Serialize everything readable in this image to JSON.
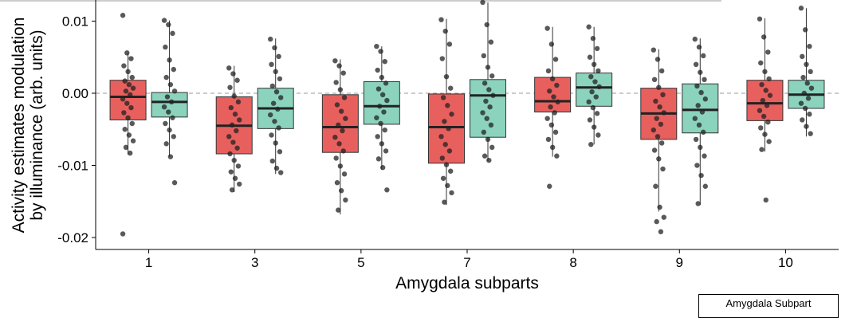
{
  "chart_data": {
    "type": "box",
    "xlabel": "Amygdala subparts",
    "ylabel_line1": "Activity estimates modulation",
    "ylabel_line2": "by illuminance (arb. units)",
    "yticks": [
      "0.01",
      "0.00",
      "-0.01",
      "-0.02"
    ],
    "ytick_values": [
      0.01,
      0.0,
      -0.01,
      -0.02
    ],
    "ylim": [
      -0.0205,
      0.0125
    ],
    "reference_line": 0.0,
    "categories": [
      "1",
      "3",
      "5",
      "7",
      "8",
      "9",
      "10"
    ],
    "legend_title": "Amygdala Subpart",
    "colors": {
      "red": "#e8605e",
      "teal": "#8bd3bc",
      "point": "#222222"
    },
    "series": [
      {
        "color_key": "red",
        "boxes": [
          {
            "q1": -0.0037,
            "median": -0.0005,
            "q3": 0.0018,
            "wlow": -0.0085,
            "whigh": 0.0055,
            "points": [
              0.0108,
              0.0056,
              0.0048,
              0.0038,
              0.003,
              0.0022,
              0.0017,
              0.0012,
              0.0007,
              0.0003,
              -0.0002,
              -0.0008,
              -0.0014,
              -0.002,
              -0.0027,
              -0.0034,
              -0.0042,
              -0.005,
              -0.0058,
              -0.0066,
              -0.0075,
              -0.0083,
              -0.0195
            ]
          },
          {
            "q1": -0.0084,
            "median": -0.0045,
            "q3": -0.0005,
            "wlow": -0.0137,
            "whigh": 0.0038,
            "points": [
              0.0035,
              0.0027,
              0.0018,
              0.0008,
              -0.0004,
              -0.0012,
              -0.002,
              -0.0029,
              -0.0037,
              -0.0044,
              -0.0052,
              -0.006,
              -0.0068,
              -0.0076,
              -0.0084,
              -0.0093,
              -0.0101,
              -0.0109,
              -0.0118,
              -0.0126,
              -0.0134
            ]
          },
          {
            "q1": -0.0082,
            "median": -0.0047,
            "q3": -0.0002,
            "wlow": -0.0168,
            "whigh": 0.0047,
            "points": [
              0.0045,
              0.0038,
              0.0028,
              0.0015,
              0.0005,
              -0.0006,
              -0.0016,
              -0.0025,
              -0.0035,
              -0.0044,
              -0.0052,
              -0.0061,
              -0.007,
              -0.008,
              -0.009,
              -0.0101,
              -0.0112,
              -0.0124,
              -0.0135,
              -0.0148,
              -0.0162
            ]
          },
          {
            "q1": -0.0097,
            "median": -0.0047,
            "q3": -0.0001,
            "wlow": -0.0155,
            "whigh": 0.0103,
            "points": [
              0.0102,
              0.0086,
              0.0068,
              0.0048,
              0.0023,
              0.0007,
              -0.0006,
              -0.0017,
              -0.0029,
              -0.0039,
              -0.0049,
              -0.006,
              -0.0071,
              -0.008,
              -0.009,
              -0.0099,
              -0.0108,
              -0.0118,
              -0.0128,
              -0.0138,
              -0.0151
            ]
          },
          {
            "q1": -0.0026,
            "median": -0.0011,
            "q3": 0.0022,
            "wlow": -0.0088,
            "whigh": 0.0092,
            "points": [
              0.009,
              0.0068,
              0.0047,
              0.0031,
              0.002,
              0.0011,
              0.0003,
              -0.0005,
              -0.0012,
              -0.0019,
              -0.0027,
              -0.0035,
              -0.0044,
              -0.0054,
              -0.0064,
              -0.0075,
              -0.0087,
              -0.0129
            ]
          },
          {
            "q1": -0.0064,
            "median": -0.0028,
            "q3": 0.0007,
            "wlow": -0.0164,
            "whigh": 0.0061,
            "points": [
              0.006,
              0.0047,
              0.0031,
              0.0019,
              0.0008,
              -0.0002,
              -0.0011,
              -0.0019,
              -0.0027,
              -0.0035,
              -0.0043,
              -0.0051,
              -0.006,
              -0.0069,
              -0.0079,
              -0.0091,
              -0.0105,
              -0.0129,
              -0.0158,
              -0.0172,
              -0.0178,
              -0.0192
            ]
          },
          {
            "q1": -0.0038,
            "median": -0.0014,
            "q3": 0.0018,
            "wlow": -0.0081,
            "whigh": 0.0104,
            "points": [
              0.0103,
              0.0078,
              0.0057,
              0.0042,
              0.003,
              0.002,
              0.0012,
              0.0004,
              -0.0003,
              -0.001,
              -0.0017,
              -0.0024,
              -0.0032,
              -0.004,
              -0.0048,
              -0.0057,
              -0.0067,
              -0.0078,
              -0.0148
            ]
          }
        ]
      },
      {
        "color_key": "teal",
        "boxes": [
          {
            "q1": -0.0033,
            "median": -0.0012,
            "q3": 0.0001,
            "wlow": -0.0088,
            "whigh": 0.0101,
            "points": [
              0.0101,
              0.0095,
              0.0083,
              0.0064,
              0.0046,
              0.0033,
              0.0022,
              0.0012,
              0.0003,
              -0.0005,
              -0.0012,
              -0.0019,
              -0.0026,
              -0.0034,
              -0.0042,
              -0.0051,
              -0.006,
              -0.007,
              -0.0088,
              -0.0124
            ]
          },
          {
            "q1": -0.0049,
            "median": -0.0021,
            "q3": 0.0007,
            "wlow": -0.0112,
            "whigh": 0.0076,
            "points": [
              0.0075,
              0.0063,
              0.0051,
              0.004,
              0.003,
              0.002,
              0.001,
              0.0002,
              -0.0006,
              -0.0014,
              -0.0022,
              -0.003,
              -0.0039,
              -0.0048,
              -0.0058,
              -0.0069,
              -0.0081,
              -0.0094,
              -0.0104,
              -0.011
            ]
          },
          {
            "q1": -0.0043,
            "median": -0.0018,
            "q3": 0.0016,
            "wlow": -0.0106,
            "whigh": 0.0065,
            "points": [
              0.0065,
              0.0058,
              0.0044,
              0.0032,
              0.0022,
              0.0014,
              0.0006,
              -0.0002,
              -0.001,
              -0.0018,
              -0.0026,
              -0.0034,
              -0.0042,
              -0.0051,
              -0.006,
              -0.007,
              -0.008,
              -0.0091,
              -0.0103,
              -0.0134
            ]
          },
          {
            "q1": -0.0061,
            "median": -0.0003,
            "q3": 0.0019,
            "wlow": -0.0094,
            "whigh": 0.0126,
            "points": [
              0.0126,
              0.0095,
              0.0071,
              0.0052,
              0.0036,
              0.0024,
              0.0014,
              0.0005,
              -0.0003,
              -0.0011,
              -0.0019,
              -0.0027,
              -0.0035,
              -0.0044,
              -0.0054,
              -0.0064,
              -0.0075,
              -0.0087,
              -0.0093
            ]
          },
          {
            "q1": -0.0018,
            "median": 0.0008,
            "q3": 0.0028,
            "wlow": -0.0071,
            "whigh": 0.0092,
            "points": [
              0.0092,
              0.0076,
              0.0062,
              0.005,
              0.004,
              0.0031,
              0.0023,
              0.0016,
              0.0009,
              0.0002,
              -0.0005,
              -0.0012,
              -0.002,
              -0.0028,
              -0.0037,
              -0.0047,
              -0.0058,
              -0.0071
            ]
          },
          {
            "q1": -0.0055,
            "median": -0.0023,
            "q3": 0.0013,
            "wlow": -0.0155,
            "whigh": 0.0076,
            "points": [
              0.0075,
              0.0064,
              0.0052,
              0.004,
              0.0029,
              0.0019,
              0.001,
              0.0001,
              -0.0008,
              -0.0017,
              -0.0026,
              -0.0035,
              -0.0044,
              -0.0054,
              -0.0064,
              -0.0075,
              -0.0087,
              -0.01,
              -0.0114,
              -0.0129,
              -0.0153
            ]
          },
          {
            "q1": -0.0021,
            "median": -0.0002,
            "q3": 0.0018,
            "wlow": -0.006,
            "whigh": 0.0118,
            "points": [
              0.0118,
              0.0088,
              0.0065,
              0.0051,
              0.004,
              0.003,
              0.0022,
              0.0014,
              0.0007,
              0.0,
              -0.0007,
              -0.0014,
              -0.0021,
              -0.0029,
              -0.0037,
              -0.0046,
              -0.0056
            ]
          }
        ]
      }
    ]
  }
}
